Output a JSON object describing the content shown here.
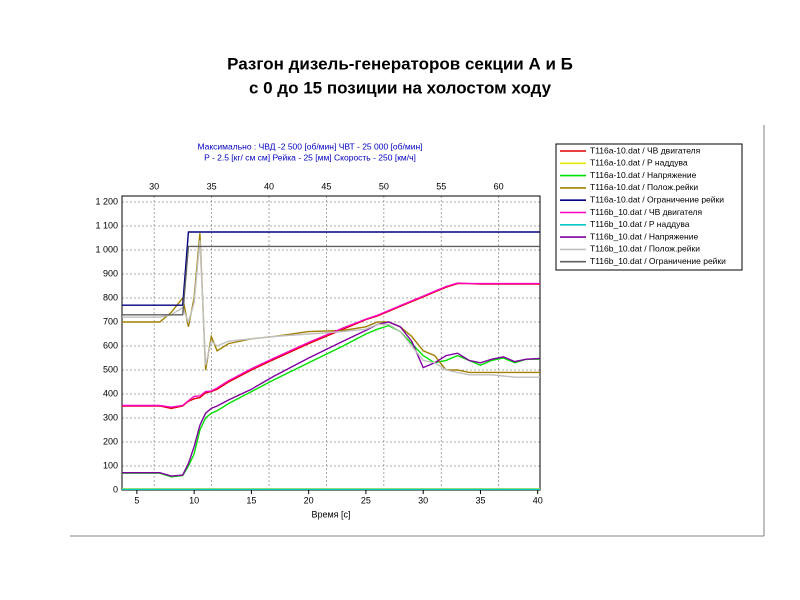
{
  "chart_data": {
    "type": "line",
    "title": [
      "Разгон дизель-генераторов секции А и Б",
      "с 0 до 15 позиции на холостом ходу"
    ],
    "annotations": [
      "Максимально :   ЧВД -2 500  [об/мин]    ЧВТ - 25 000 [об/мин]",
      "P - 2.5 [кг/ см см]   Рейка - 25 [мм]  Скорость - 250 [км/ч]"
    ],
    "x_label": "Время [с]",
    "x": [
      3.7,
      5,
      7,
      8,
      9,
      9.5,
      10,
      10.5,
      11,
      11.5,
      12,
      13,
      15,
      17,
      20,
      23,
      25,
      26,
      27,
      28,
      29,
      30,
      31,
      32,
      33,
      34,
      35,
      36,
      37,
      38,
      39,
      40.2
    ],
    "xlim": [
      3.7,
      40.2
    ],
    "xticks": [
      5,
      10,
      15,
      20,
      25,
      30,
      35,
      40
    ],
    "x2lim": [
      27.2,
      63.6
    ],
    "x2ticks": [
      30,
      35,
      40,
      45,
      50,
      55,
      60
    ],
    "ylim": [
      0,
      1225
    ],
    "yticks": [
      0,
      100,
      200,
      300,
      400,
      500,
      600,
      700,
      800,
      900,
      {
        "value": 1000,
        "label": "1 000"
      },
      {
        "value": 1100,
        "label": "1 100"
      },
      {
        "value": 1200,
        "label": "1 200"
      }
    ],
    "grid": true,
    "legend": "right",
    "series": [
      {
        "name": "T116a-10.dat / ЧВ двигателя",
        "color": "#e00000",
        "values": [
          350,
          350,
          350,
          340,
          350,
          370,
          380,
          385,
          405,
          410,
          420,
          450,
          500,
          545,
          610,
          670,
          710,
          725,
          745,
          765,
          785,
          805,
          825,
          845,
          860,
          860,
          858,
          858,
          858,
          858,
          858,
          858
        ]
      },
      {
        "name": "T116a-10.dat / P наддува",
        "color": "#e8e800",
        "values": [
          5,
          5,
          5,
          5,
          5,
          5,
          5,
          5,
          5,
          5,
          5,
          5,
          5,
          5,
          5,
          5,
          5,
          5,
          5,
          5,
          5,
          5,
          5,
          5,
          5,
          5,
          5,
          5,
          5,
          5,
          5,
          5
        ]
      },
      {
        "name": "T116a-10.dat / Напряжение",
        "color": "#00e000",
        "values": [
          70,
          70,
          70,
          55,
          60,
          100,
          150,
          250,
          300,
          320,
          330,
          360,
          410,
          460,
          530,
          600,
          650,
          670,
          685,
          660,
          610,
          560,
          530,
          540,
          560,
          540,
          520,
          540,
          550,
          530,
          545,
          545
        ]
      },
      {
        "name": "T116a-10.dat / Полож.рейки",
        "color": "#a08000",
        "values": [
          700,
          700,
          700,
          740,
          800,
          680,
          800,
          1070,
          500,
          640,
          580,
          610,
          630,
          640,
          660,
          665,
          680,
          700,
          700,
          680,
          640,
          580,
          560,
          500,
          500,
          490,
          490,
          490,
          490,
          490,
          490,
          490
        ]
      },
      {
        "name": "T116a-10.dat / Ограничение рейки",
        "color": "#000080",
        "values": [
          770,
          770,
          770,
          770,
          770,
          1075,
          1075,
          1075,
          1075,
          1075,
          1075,
          1075,
          1075,
          1075,
          1075,
          1075,
          1075,
          1075,
          1075,
          1075,
          1075,
          1075,
          1075,
          1075,
          1075,
          1075,
          1075,
          1075,
          1075,
          1075,
          1075,
          1075
        ]
      },
      {
        "name": "T116b_10.dat / ЧВ двигателя",
        "color": "#ff00c0",
        "values": [
          352,
          352,
          352,
          345,
          352,
          372,
          390,
          392,
          410,
          412,
          425,
          455,
          505,
          550,
          615,
          675,
          712,
          728,
          748,
          768,
          788,
          808,
          828,
          848,
          862,
          860,
          860,
          860,
          860,
          860,
          860,
          860
        ]
      },
      {
        "name": "T116b_10.dat / P наддува",
        "color": "#00c8c8",
        "values": [
          3,
          3,
          3,
          3,
          3,
          3,
          3,
          3,
          3,
          3,
          3,
          3,
          3,
          3,
          3,
          3,
          3,
          3,
          3,
          3,
          3,
          3,
          3,
          3,
          3,
          3,
          3,
          3,
          3,
          3,
          3,
          3
        ]
      },
      {
        "name": "T116b_10.dat / Напряжение",
        "color": "#8000a0",
        "values": [
          72,
          72,
          72,
          58,
          62,
          110,
          180,
          270,
          320,
          340,
          350,
          375,
          420,
          475,
          550,
          620,
          665,
          690,
          700,
          680,
          620,
          510,
          530,
          560,
          570,
          540,
          530,
          545,
          555,
          535,
          545,
          548
        ]
      },
      {
        "name": "T116b_10.dat / Полож.рейки",
        "color": "#c0c0c0",
        "values": [
          720,
          720,
          720,
          730,
          760,
          700,
          780,
          1040,
          520,
          620,
          600,
          620,
          630,
          640,
          650,
          660,
          670,
          690,
          690,
          660,
          600,
          540,
          530,
          500,
          490,
          480,
          480,
          480,
          475,
          470,
          470,
          470
        ]
      },
      {
        "name": "T116b_10.dat / Ограничение рейки",
        "color": "#606060",
        "values": [
          730,
          730,
          730,
          730,
          730,
          1015,
          1015,
          1015,
          1015,
          1015,
          1015,
          1015,
          1015,
          1015,
          1015,
          1015,
          1015,
          1015,
          1015,
          1015,
          1015,
          1015,
          1015,
          1015,
          1015,
          1015,
          1015,
          1015,
          1015,
          1015,
          1015,
          1015
        ]
      }
    ]
  }
}
